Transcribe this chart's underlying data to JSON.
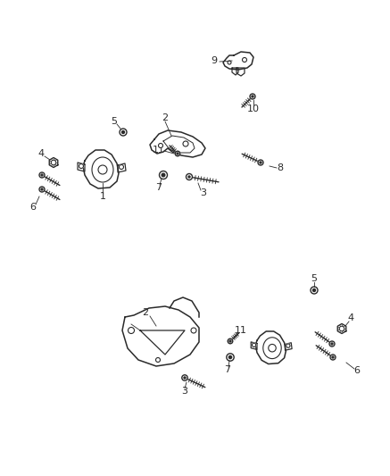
{
  "bg_color": "#ffffff",
  "line_color": "#2a2a2a",
  "figsize": [
    4.37,
    5.33
  ],
  "dpi": 100,
  "label_fontsize": 8,
  "lw_part": 1.1,
  "lw_leader": 0.6
}
